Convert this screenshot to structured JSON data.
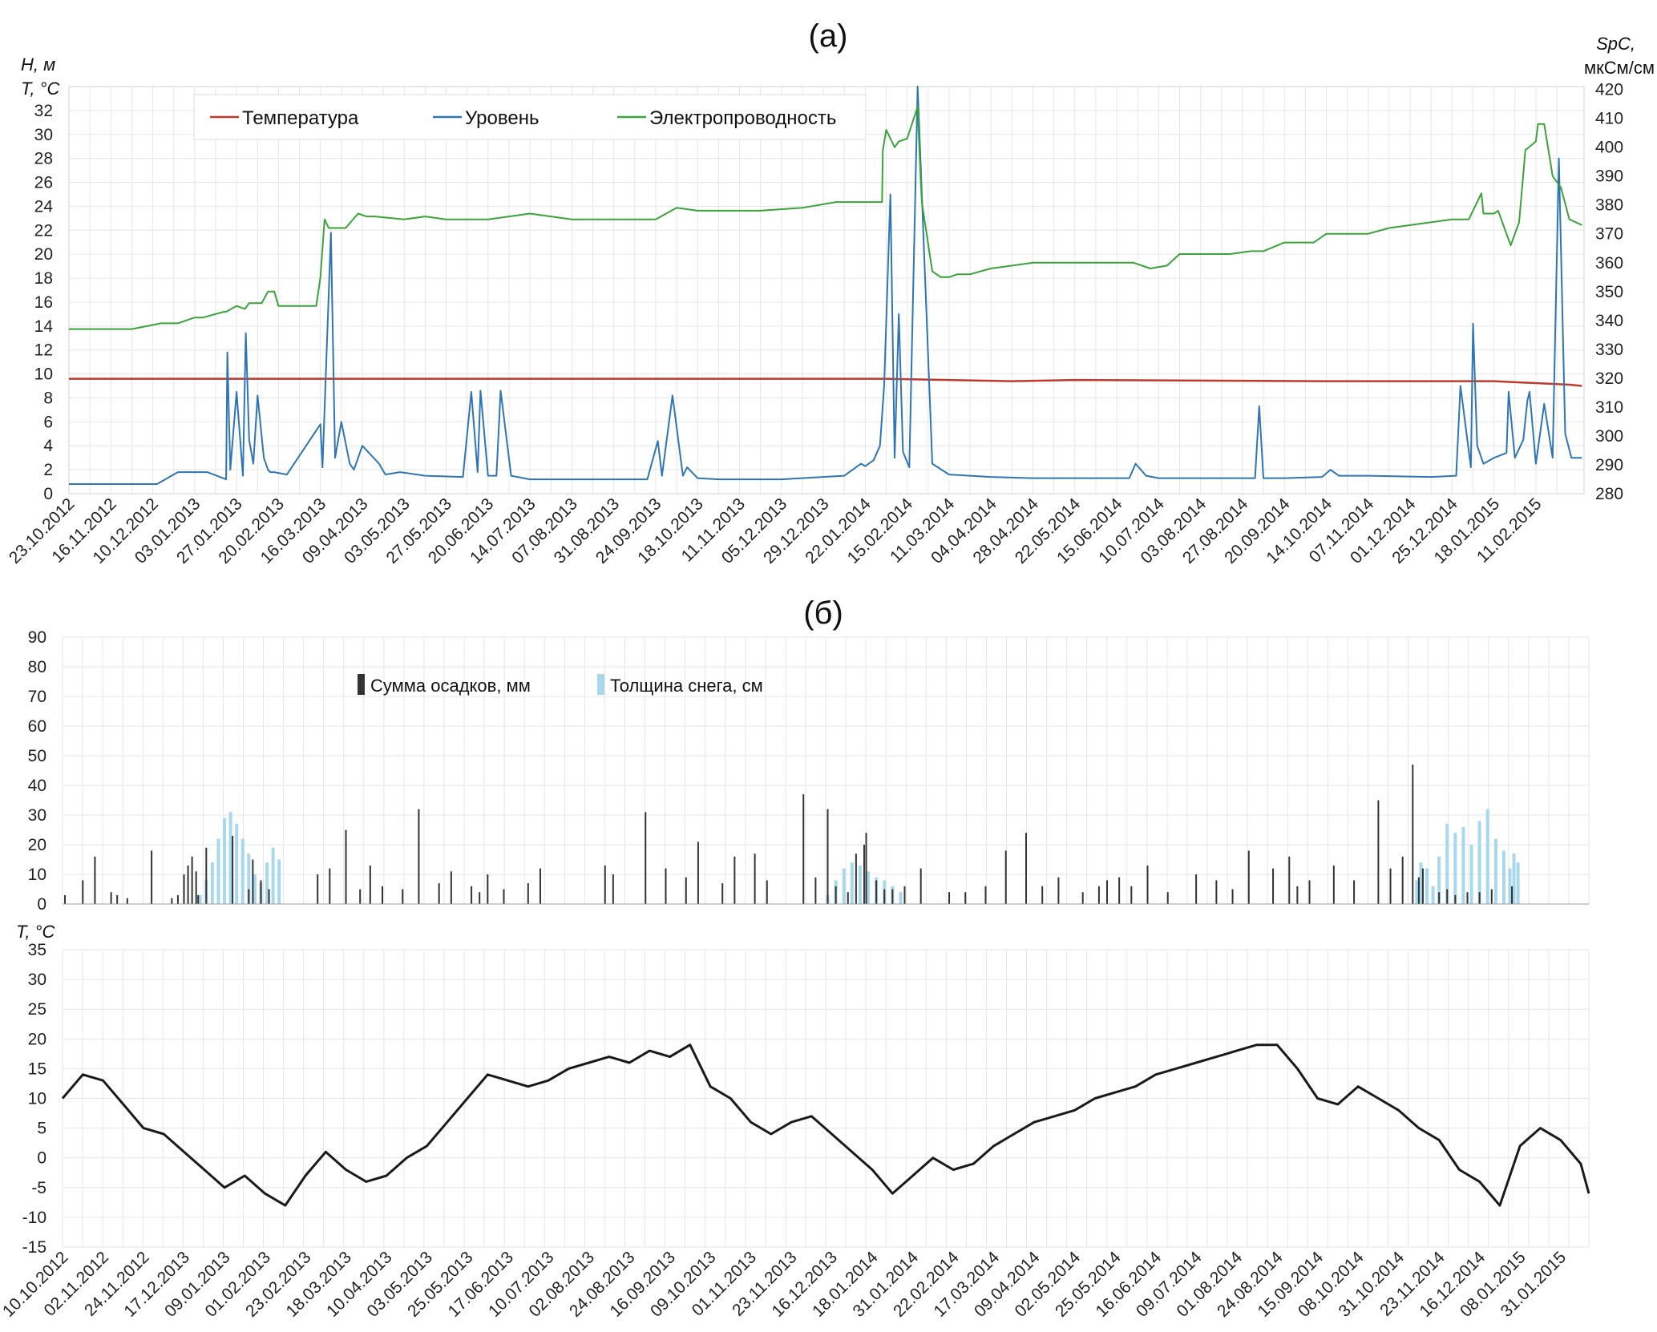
{
  "panel_a": {
    "title": "(a)",
    "y_left_title_1": "H, м",
    "y_left_title_2": "T, °C",
    "y_right_title_1": "SpC,",
    "y_right_title_2": "мкСм/см",
    "legend": {
      "temperature": "Температура",
      "level": "Уровень",
      "conductivity": "Электропроводность"
    }
  },
  "panel_b": {
    "title": "(б)",
    "legend": {
      "precip": "Сумма осадков, мм",
      "snow": "Толщина снега, см"
    },
    "temp_axis_title": "T, °C"
  },
  "colors": {
    "temperature": "#c0392b",
    "level": "#2e75b6",
    "conductivity": "#3aa33a",
    "precip": "#333333",
    "snow": "#a8d8ee",
    "air_temp": "#1a1a1a",
    "grid": "#e6e6e6"
  },
  "chart_data": [
    {
      "type": "line",
      "id": "groundwater",
      "x_ticks": [
        "23.10.2012",
        "16.11.2012",
        "10.12.2012",
        "03.01.2013",
        "27.01.2013",
        "20.02.2013",
        "16.03.2013",
        "09.04.2013",
        "03.05.2013",
        "27.05.2013",
        "20.06.2013",
        "14.07.2013",
        "07.08.2013",
        "31.08.2013",
        "24.09.2013",
        "18.10.2013",
        "11.11.2013",
        "05.12.2013",
        "29.12.2013",
        "22.01.2014",
        "15.02.2014",
        "11.03.2014",
        "04.04.2014",
        "28.04.2014",
        "22.05.2014",
        "15.06.2014",
        "10.07.2014",
        "03.08.2014",
        "27.08.2014",
        "20.09.2014",
        "14.10.2014",
        "07.11.2014",
        "01.12.2014",
        "25.12.2014",
        "18.01.2015",
        "11.02.2015"
      ],
      "xlim": [
        0,
        36.15
      ],
      "y_left_ticks": [
        "0",
        "2",
        "4",
        "6",
        "8",
        "10",
        "12",
        "14",
        "16",
        "18",
        "20",
        "22",
        "24",
        "26",
        "28",
        "30",
        "32"
      ],
      "ylim_left": [
        0,
        34
      ],
      "y_right_ticks": [
        "280",
        "290",
        "300",
        "310",
        "320",
        "330",
        "340",
        "350",
        "360",
        "370",
        "380",
        "390",
        "400",
        "410",
        "420"
      ],
      "ylim_right": [
        280,
        421
      ],
      "series": [
        {
          "name": "Температура",
          "axis": "left",
          "x": [
            0,
            18,
            19.5,
            22.5,
            24,
            30,
            34,
            35.8,
            36.1
          ],
          "y": [
            9.6,
            9.6,
            9.6,
            9.4,
            9.5,
            9.4,
            9.4,
            9.1,
            9.0
          ]
        },
        {
          "name": "Уровень",
          "axis": "left",
          "x": [
            0,
            2.1,
            2.6,
            3.3,
            3.75,
            3.78,
            3.85,
            4.0,
            4.15,
            4.22,
            4.3,
            4.4,
            4.5,
            4.65,
            4.75,
            4.8,
            4.9,
            5.2,
            6.0,
            6.05,
            6.25,
            6.35,
            6.5,
            6.7,
            6.8,
            7.0,
            7.4,
            7.55,
            7.9,
            8.5,
            9.4,
            9.6,
            9.75,
            9.82,
            10.0,
            10.2,
            10.3,
            10.55,
            10.7,
            11.0,
            11.5,
            12.0,
            13.8,
            14.05,
            14.15,
            14.4,
            14.65,
            14.75,
            15.0,
            15.5,
            17.0,
            18.5,
            18.9,
            19.0,
            19.2,
            19.35,
            19.45,
            19.6,
            19.7,
            19.8,
            19.9,
            20.05,
            20.25,
            20.6,
            21.0,
            22.0,
            23.0,
            24.0,
            25.3,
            25.45,
            25.7,
            26.0,
            27.5,
            28.3,
            28.4,
            28.5,
            29.0,
            29.9,
            30.1,
            30.3,
            31.0,
            32.5,
            33.1,
            33.2,
            33.45,
            33.5,
            33.6,
            33.75,
            34.0,
            34.3,
            34.35,
            34.5,
            34.7,
            34.8,
            34.85,
            35.0,
            35.2,
            35.4,
            35.55,
            35.7,
            35.85,
            36.1
          ],
          "y": [
            0.8,
            0.8,
            1.8,
            1.8,
            1.2,
            11.8,
            2.0,
            8.5,
            1.5,
            13.4,
            4.5,
            2.5,
            8.2,
            3.0,
            2.0,
            1.8,
            1.8,
            1.6,
            5.8,
            2.2,
            21.8,
            3.0,
            6.0,
            2.5,
            2.0,
            4.0,
            2.5,
            1.6,
            1.8,
            1.5,
            1.4,
            8.5,
            1.8,
            8.6,
            1.5,
            1.5,
            8.6,
            1.5,
            1.4,
            1.2,
            1.2,
            1.2,
            1.2,
            4.4,
            1.5,
            8.2,
            1.5,
            2.2,
            1.3,
            1.2,
            1.2,
            1.5,
            2.5,
            2.3,
            2.8,
            4.0,
            9.0,
            25.0,
            3.0,
            15.0,
            3.5,
            2.2,
            34.0,
            2.5,
            1.6,
            1.4,
            1.3,
            1.3,
            1.3,
            2.5,
            1.5,
            1.3,
            1.3,
            1.3,
            7.3,
            1.3,
            1.3,
            1.4,
            2.0,
            1.5,
            1.5,
            1.4,
            1.5,
            9.0,
            2.2,
            14.2,
            4.0,
            2.5,
            3.0,
            3.4,
            8.5,
            3.0,
            4.5,
            7.8,
            8.5,
            2.5,
            7.5,
            3.0,
            28.0,
            5.0,
            3.0,
            3.0
          ]
        },
        {
          "name": "Электропроводность",
          "axis": "right",
          "x": [
            0,
            1.5,
            2.2,
            2.6,
            3.0,
            3.2,
            3.7,
            3.75,
            4.0,
            4.2,
            4.3,
            4.6,
            4.75,
            4.9,
            5.0,
            5.3,
            5.9,
            6.0,
            6.1,
            6.2,
            6.6,
            6.9,
            7.1,
            7.3,
            8.0,
            8.5,
            9.0,
            10.0,
            11.0,
            12.0,
            13.5,
            14.0,
            14.5,
            15.0,
            16.5,
            17.5,
            18.3,
            18.35,
            19.4,
            19.42,
            19.5,
            19.7,
            19.8,
            20.0,
            20.25,
            20.3,
            20.35,
            20.6,
            20.8,
            21.0,
            21.2,
            21.5,
            22.0,
            23.0,
            24.0,
            24.3,
            24.5,
            25.0,
            25.3,
            25.4,
            25.8,
            26.2,
            26.5,
            27.0,
            27.7,
            28.2,
            28.5,
            29.0,
            29.7,
            30.0,
            30.5,
            31.0,
            31.5,
            32.0,
            33.0,
            33.3,
            33.4,
            33.7,
            33.75,
            34.0,
            34.1,
            34.4,
            34.6,
            34.75,
            35.0,
            35.05,
            35.2,
            35.4,
            35.6,
            35.8,
            36.1
          ],
          "y": [
            337,
            337,
            339,
            339,
            341,
            341,
            343,
            343,
            345,
            344,
            346,
            346,
            350,
            350,
            345,
            345,
            345,
            355,
            375,
            372,
            372,
            377,
            376,
            376,
            375,
            376,
            375,
            375,
            377,
            375,
            375,
            375,
            379,
            378,
            378,
            379,
            381,
            381,
            381,
            399,
            406,
            400,
            402,
            403,
            414,
            396,
            381,
            357,
            355,
            355,
            356,
            356,
            358,
            360,
            360,
            360,
            360,
            360,
            360,
            360,
            358,
            359,
            363,
            363,
            363,
            364,
            364,
            367,
            367,
            370,
            370,
            370,
            372,
            373,
            375,
            375,
            375,
            384,
            377,
            377,
            378,
            366,
            374,
            399,
            402,
            408,
            408,
            390,
            386,
            375,
            373
          ]
        }
      ]
    },
    {
      "type": "bar",
      "id": "precip_snow",
      "ylim": [
        0,
        90
      ],
      "y_ticks": [
        "0",
        "10",
        "20",
        "30",
        "40",
        "50",
        "60",
        "70",
        "80",
        "90"
      ],
      "series": [
        {
          "name": "Сумма осадков, мм",
          "x": [
            0.06,
            0.5,
            0.8,
            1.2,
            1.35,
            1.6,
            2.2,
            2.7,
            2.85,
            3.0,
            3.1,
            3.2,
            3.3,
            3.35,
            3.55,
            4.2,
            4.6,
            4.7,
            4.9,
            5.1,
            6.3,
            6.6,
            7.0,
            7.35,
            7.6,
            7.9,
            8.4,
            8.8,
            9.3,
            9.6,
            10.1,
            10.3,
            10.5,
            10.9,
            11.5,
            11.8,
            13.4,
            13.6,
            14.4,
            14.9,
            15.4,
            15.7,
            16.3,
            16.6,
            17.1,
            17.4,
            18.3,
            18.6,
            18.9,
            19.1,
            19.4,
            19.6,
            19.8,
            19.85,
            20.1,
            20.3,
            20.5,
            20.8,
            21.2,
            21.9,
            22.3,
            22.8,
            23.3,
            23.8,
            24.2,
            24.6,
            25.2,
            25.6,
            25.8,
            26.1,
            26.4,
            26.8,
            27.3,
            28.0,
            28.5,
            28.9,
            29.3,
            29.9,
            30.3,
            30.5,
            30.8,
            31.4,
            31.9,
            32.5,
            32.8,
            33.1,
            33.35,
            33.5,
            33.6,
            34.0,
            34.2,
            34.4,
            34.7,
            35.0,
            35.3,
            35.8
          ],
          "y": [
            3,
            8,
            16,
            4,
            3,
            2,
            18,
            2,
            3,
            10,
            13,
            16,
            11,
            3,
            19,
            23,
            5,
            15,
            8,
            5,
            10,
            12,
            25,
            5,
            13,
            6,
            5,
            32,
            7,
            11,
            6,
            4,
            10,
            5,
            7,
            12,
            13,
            10,
            31,
            12,
            9,
            21,
            7,
            16,
            17,
            8,
            37,
            9,
            32,
            6,
            4,
            17,
            20,
            24,
            8,
            5,
            5,
            6,
            12,
            4,
            4,
            6,
            18,
            24,
            6,
            9,
            4,
            6,
            8,
            9,
            6,
            13,
            4,
            10,
            8,
            5,
            18,
            12,
            16,
            6,
            8,
            13,
            8,
            35,
            12,
            16,
            47,
            9,
            12,
            4,
            5,
            3,
            4,
            4,
            5,
            6
          ]
        },
        {
          "name": "Толщина снега, см",
          "x": [
            3.4,
            3.55,
            3.7,
            3.85,
            4.0,
            4.15,
            4.3,
            4.45,
            4.6,
            4.75,
            4.9,
            5.05,
            5.2,
            5.35,
            18.9,
            19.1,
            19.3,
            19.5,
            19.7,
            19.9,
            20.1,
            20.3,
            20.5,
            20.7,
            33.45,
            33.55,
            33.7,
            33.85,
            34.0,
            34.2,
            34.4,
            34.6,
            34.8,
            35.0,
            35.2,
            35.4,
            35.6,
            35.75,
            35.85,
            35.95
          ],
          "y": [
            3,
            8,
            14,
            22,
            29,
            31,
            27,
            22,
            17,
            10,
            7,
            14,
            19,
            15,
            3,
            8,
            12,
            14,
            13,
            11,
            9,
            8,
            6,
            4,
            8,
            14,
            12,
            6,
            16,
            27,
            24,
            26,
            20,
            28,
            32,
            22,
            18,
            12,
            17,
            14
          ]
        }
      ]
    },
    {
      "type": "line",
      "id": "air_temperature",
      "title": "T, °C",
      "x_ticks": [
        "10.10.2012",
        "02.11.2012",
        "24.11.2012",
        "17.12.2013",
        "09.01.2013",
        "01.02.2013",
        "23.02.2013",
        "18.03.2013",
        "10.04.2013",
        "03.05.2013",
        "25.05.2013",
        "17.06.2013",
        "10.07.2013",
        "02.08.2013",
        "24.08.2013",
        "16.09.2013",
        "09.10.2013",
        "01.11.2013",
        "23.11.2013",
        "16.12.2013",
        "18.01.2014",
        "31.01.2014",
        "22.02.2014",
        "17.03.2014",
        "09.04.2014",
        "02.05.2014",
        "25.05.2014",
        "16.06.2014",
        "09.07.2014",
        "01.08.2014",
        "24.08.2014",
        "15.09.2014",
        "08.10.2014",
        "31.10.2014",
        "23.11.2014",
        "16.12.2014",
        "08.01.2015",
        "31.01.2015"
      ],
      "xlim": [
        0,
        37.7
      ],
      "y_ticks": [
        "-15",
        "-10",
        "-5",
        "0",
        "5",
        "10",
        "15",
        "20",
        "25",
        "30",
        "35"
      ],
      "ylim": [
        -15,
        35
      ],
      "series": [
        {
          "name": "",
          "x": [
            0,
            0.5,
            1.0,
            1.5,
            2.0,
            2.5,
            3.0,
            3.5,
            4.0,
            4.5,
            5.0,
            5.5,
            6.0,
            6.5,
            7.0,
            7.5,
            8.0,
            8.5,
            9.0,
            9.5,
            10.0,
            10.5,
            11.0,
            11.5,
            12.0,
            12.5,
            13.0,
            13.5,
            14.0,
            14.5,
            15.0,
            15.5,
            16.0,
            16.5,
            17.0,
            17.5,
            18.0,
            18.5,
            19.0,
            19.5,
            20.0,
            20.5,
            21.0,
            21.5,
            22.0,
            22.5,
            23.0,
            23.5,
            24.0,
            24.5,
            25.0,
            25.5,
            26.0,
            26.5,
            27.0,
            27.5,
            28.0,
            28.5,
            29.0,
            29.5,
            30.0,
            30.5,
            31.0,
            31.5,
            32.0,
            32.5,
            33.0,
            33.5,
            34.0,
            34.5,
            35.0,
            35.5,
            36.0,
            36.5,
            37.0,
            37.5,
            37.7
          ],
          "y": [
            10,
            14,
            13,
            9,
            5,
            4,
            1,
            -2,
            -5,
            -3,
            -6,
            -8,
            -3,
            1,
            -2,
            -4,
            -3,
            0,
            2,
            6,
            10,
            14,
            13,
            12,
            13,
            15,
            16,
            17,
            16,
            18,
            17,
            19,
            12,
            10,
            6,
            4,
            6,
            7,
            4,
            1,
            -2,
            -6,
            -3,
            0,
            -2,
            -1,
            2,
            4,
            6,
            7,
            8,
            10,
            11,
            12,
            14,
            15,
            16,
            17,
            18,
            19,
            19,
            15,
            10,
            9,
            12,
            10,
            8,
            5,
            3,
            -2,
            -4,
            -8,
            2,
            5,
            3,
            -1,
            -6
          ]
        }
      ]
    }
  ]
}
